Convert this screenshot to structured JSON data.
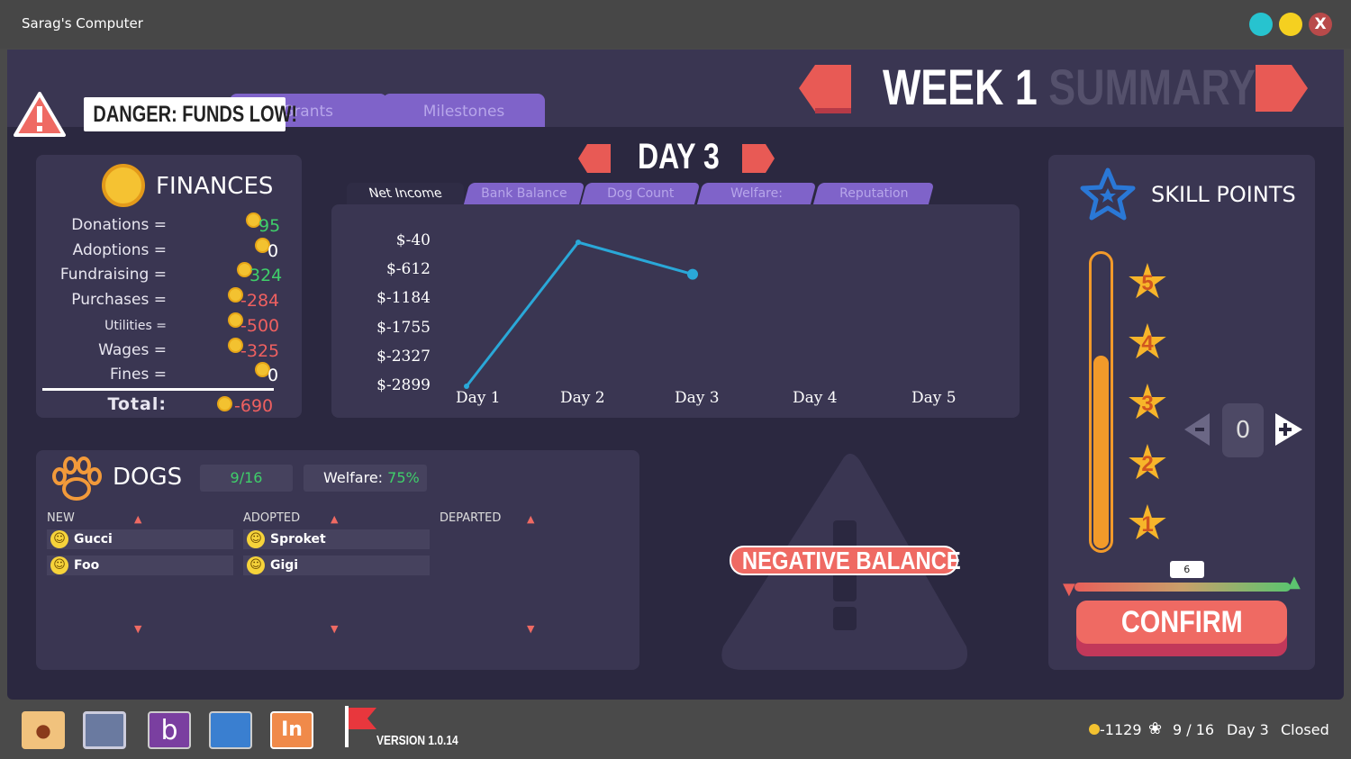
{
  "window": {
    "title": "Sarag's Computer",
    "close_label": "X",
    "controls": {
      "min_color": "#27c3cf",
      "max_color": "#f5d020",
      "close_color": "#b84a4a"
    }
  },
  "alert": {
    "text": "DANGER: FUNDS LOW!"
  },
  "top_tabs": [
    {
      "label": "Grants"
    },
    {
      "label": "Milestones"
    }
  ],
  "week": {
    "label": "WEEK 1",
    "suffix": "SUMMARY"
  },
  "day": {
    "label": "DAY 3"
  },
  "finances": {
    "title": "FINANCES",
    "rows": [
      {
        "label": "Donations =",
        "value": "95",
        "sign": "pos"
      },
      {
        "label": "Adoptions =",
        "value": "0",
        "sign": "zero"
      },
      {
        "label": "Fundraising =",
        "value": "324",
        "sign": "pos"
      },
      {
        "label": "Purchases =",
        "value": "-284",
        "sign": "neg"
      },
      {
        "label": "Utilities =",
        "value": "-500",
        "sign": "neg"
      },
      {
        "label": "Wages =",
        "value": "-325",
        "sign": "neg"
      },
      {
        "label": "Fines =",
        "value": "0",
        "sign": "zero"
      }
    ],
    "total_label": "Total:",
    "total_value": "-690"
  },
  "chart_tabs": [
    "Net Income",
    "Bank Balance",
    "Dog Count",
    "Welfare:",
    "Reputation"
  ],
  "chart_data": {
    "type": "line",
    "categories": [
      "Day 1",
      "Day 2",
      "Day 3",
      "Day 4",
      "Day 5"
    ],
    "series": [
      {
        "values": [
          -2899,
          -60,
          -690,
          null,
          null
        ],
        "color": "#2aa8d8"
      }
    ],
    "yticks": [
      "$-40",
      "$-612",
      "$-1184",
      "$-1755",
      "$-2327",
      "$-2899"
    ],
    "ylim": [
      -2899,
      -40
    ],
    "grid": false,
    "xlabel": "",
    "ylabel": ""
  },
  "dogs": {
    "title": "DOGS",
    "count": "9/16",
    "welfare_label": "Welfare:",
    "welfare_value": "75%",
    "columns": [
      {
        "label": "NEW",
        "items": [
          "Gucci",
          "Foo"
        ]
      },
      {
        "label": "ADOPTED",
        "items": [
          "Sproket",
          "Gigi"
        ]
      },
      {
        "label": "DEPARTED",
        "items": []
      }
    ]
  },
  "warning": {
    "text": "NEGATIVE BALANCE"
  },
  "skills": {
    "title": "SKILL POINTS",
    "stars": [
      "5",
      "4",
      "3",
      "2",
      "1"
    ],
    "level_fraction": 0.66,
    "stepper_value": "0",
    "stepper_minus": "-",
    "stepper_plus": "+",
    "rating_value": "6",
    "rating_fraction": 0.52,
    "confirm_label": "CONFIRM"
  },
  "dock": {
    "version": "VERSION 1.0.14",
    "apps": [
      "dog-folder",
      "shop-basket",
      "b-app",
      "blueprint",
      "indeed-app"
    ]
  },
  "status": {
    "money": "-1129",
    "dogs": "9 / 16",
    "day": "Day 3",
    "state": "Closed"
  }
}
